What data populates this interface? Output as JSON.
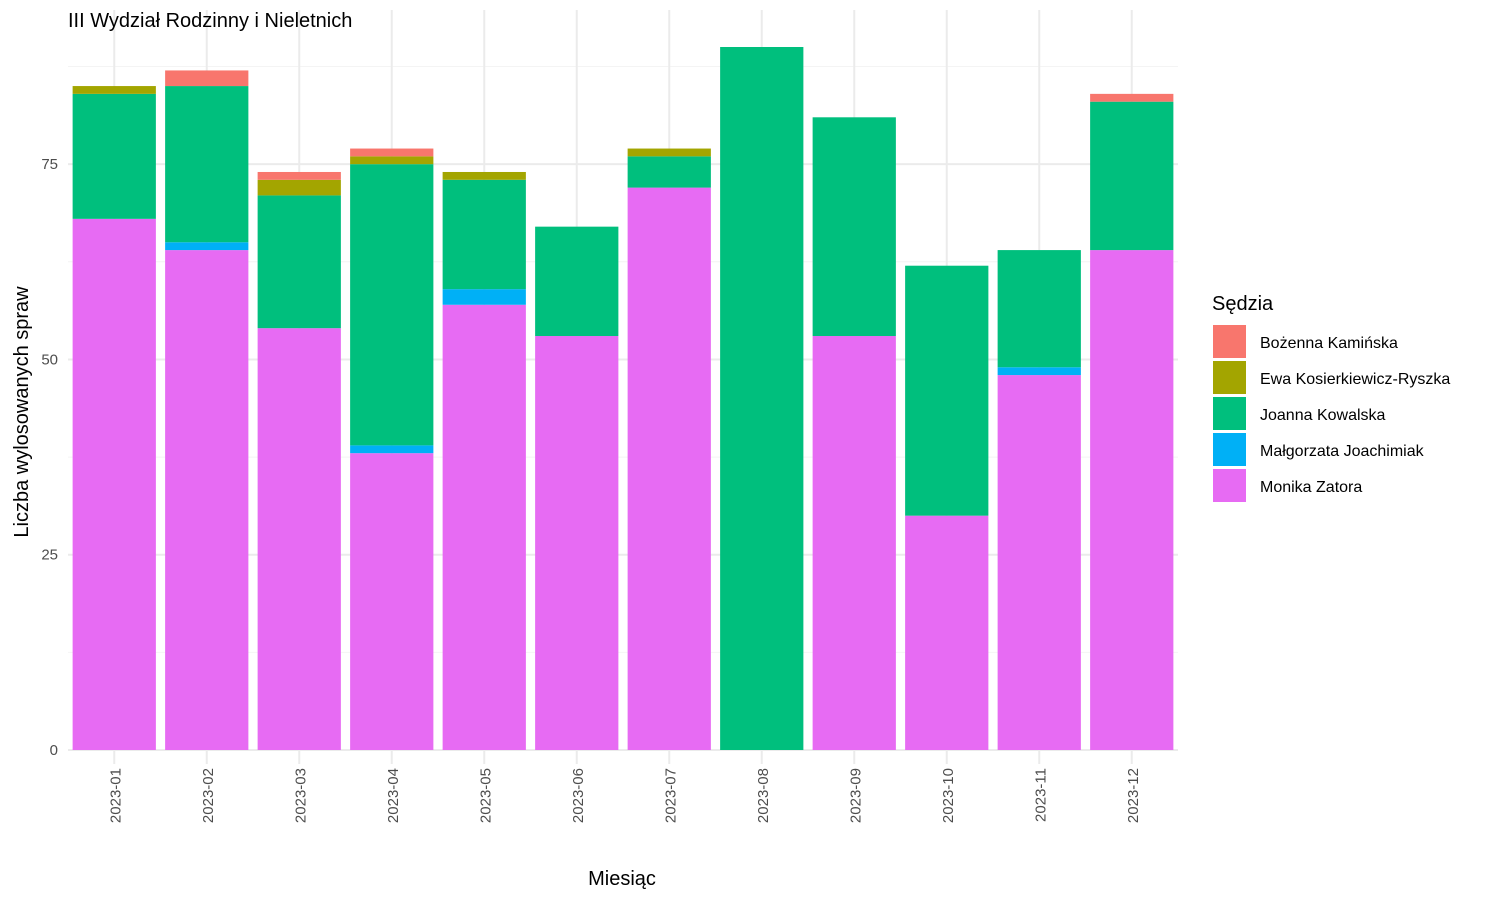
{
  "chart_data": {
    "type": "bar",
    "stacked": true,
    "title": "III Wydział Rodzinny i Nieletnich",
    "xlabel": "Miesiąc",
    "ylabel": "Liczba wylosowanych spraw",
    "ylim": [
      0,
      90
    ],
    "yticks": [
      0,
      25,
      50,
      75
    ],
    "grid": true,
    "legend": {
      "title": "Sędzia",
      "position": "right"
    },
    "categories": [
      "2023-01",
      "2023-02",
      "2023-03",
      "2023-04",
      "2023-05",
      "2023-06",
      "2023-07",
      "2023-08",
      "2023-09",
      "2023-10",
      "2023-11",
      "2023-12"
    ],
    "series": [
      {
        "name": "Monika Zatora",
        "color": "#E76BF3",
        "values": [
          68,
          64,
          54,
          38,
          57,
          53,
          72,
          0,
          53,
          30,
          48,
          64
        ]
      },
      {
        "name": "Małgorzata Joachimiak",
        "color": "#00B0F6",
        "values": [
          0,
          1,
          0,
          1,
          2,
          0,
          0,
          0,
          0,
          0,
          1,
          0
        ]
      },
      {
        "name": "Joanna Kowalska",
        "color": "#00BF7D",
        "values": [
          16,
          20,
          17,
          36,
          14,
          14,
          4,
          90,
          28,
          32,
          15,
          19
        ]
      },
      {
        "name": "Ewa Kosierkiewicz-Ryszka",
        "color": "#A3A500",
        "values": [
          1,
          0,
          2,
          1,
          1,
          0,
          1,
          0,
          0,
          0,
          0,
          0
        ]
      },
      {
        "name": "Bożenna Kamińska",
        "color": "#F8766D",
        "values": [
          0,
          2,
          1,
          1,
          0,
          0,
          0,
          0,
          0,
          0,
          0,
          1
        ]
      }
    ],
    "legend_order": [
      "Bożenna Kamińska",
      "Ewa Kosierkiewicz-Ryszka",
      "Joanna Kowalska",
      "Małgorzata Joachimiak",
      "Monika Zatora"
    ]
  }
}
